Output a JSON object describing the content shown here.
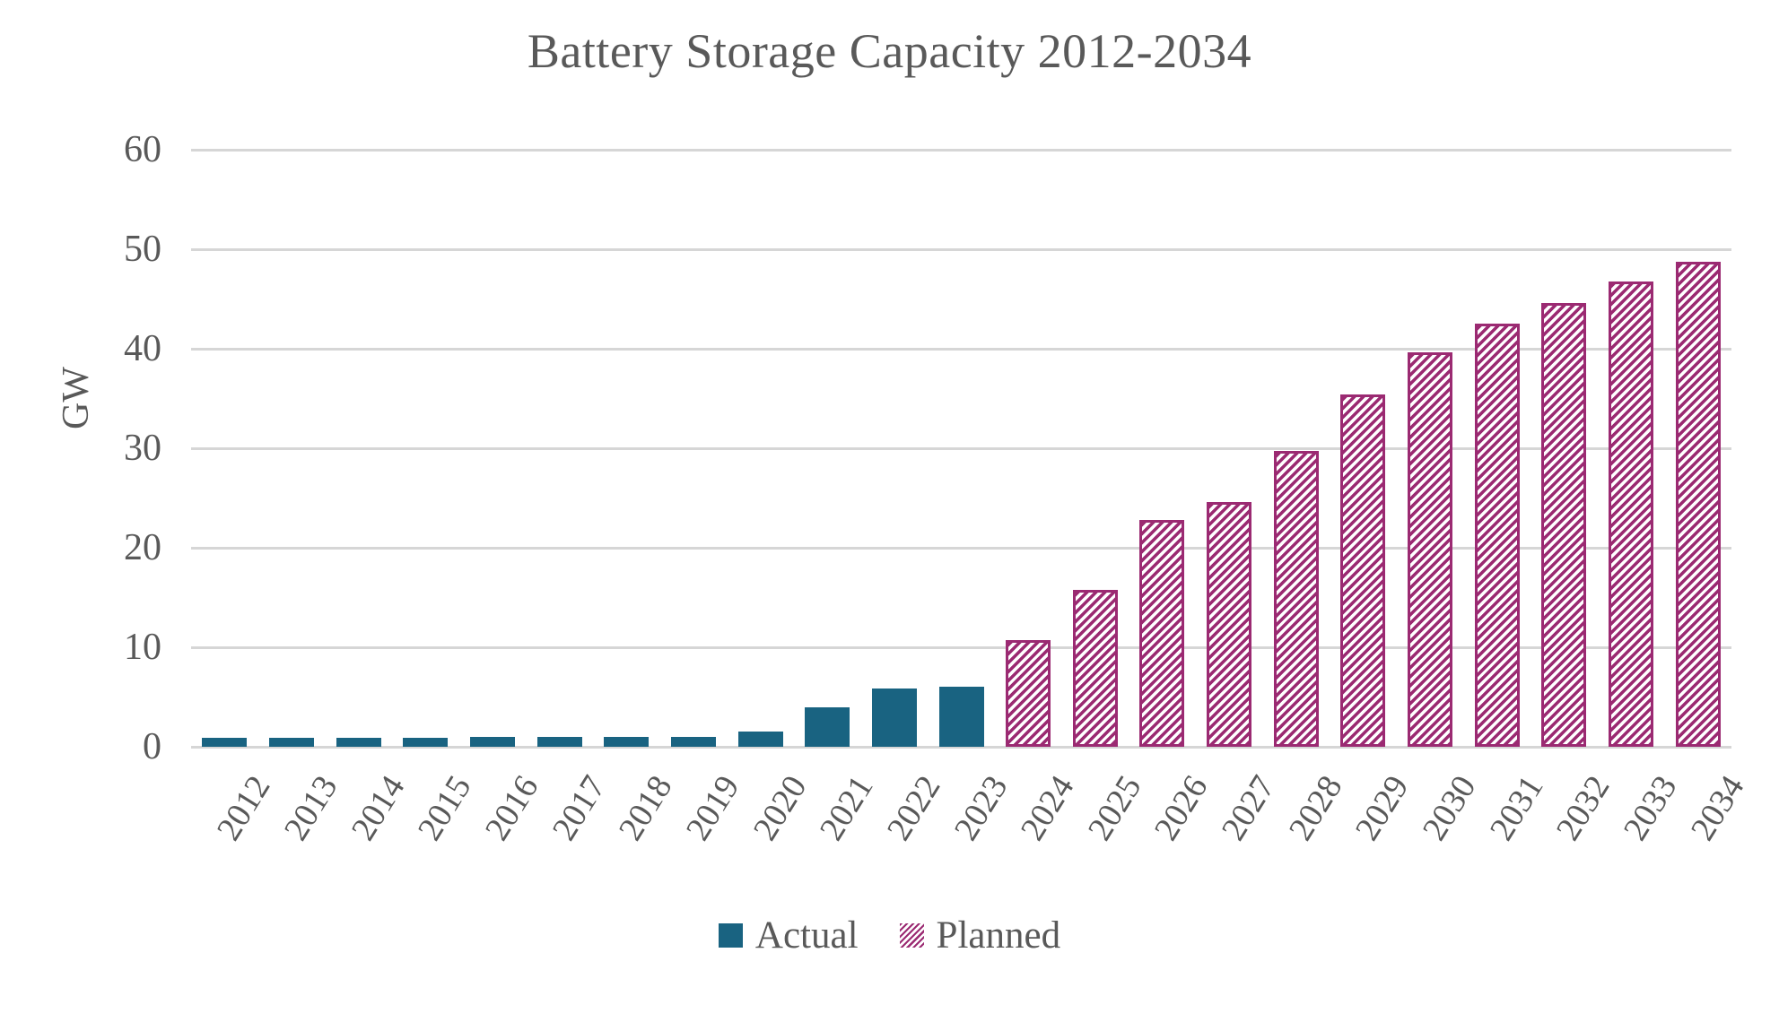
{
  "title": "Battery Storage Capacity 2012-2034",
  "y_axis": {
    "label": "GW",
    "ticks": [
      0,
      10,
      20,
      30,
      40,
      50,
      60
    ]
  },
  "colors": {
    "actual": "#196381",
    "planned": "#9b2a72",
    "gridline": "#d6d6d6",
    "text": "#595959",
    "background": "#ffffff"
  },
  "legend": {
    "position": "bottom",
    "entries": [
      "Actual",
      "Planned"
    ]
  },
  "chart_data": {
    "type": "bar",
    "title": "Battery Storage Capacity 2012-2034",
    "xlabel": "",
    "ylabel": "GW",
    "ylim": [
      0,
      60
    ],
    "grid": true,
    "legend_position": "bottom",
    "categories": [
      "2012",
      "2013",
      "2014",
      "2015",
      "2016",
      "2017",
      "2018",
      "2019",
      "2020",
      "2021",
      "2022",
      "2023",
      "2024",
      "2025",
      "2026",
      "2027",
      "2028",
      "2029",
      "2030",
      "2031",
      "2032",
      "2033",
      "2034"
    ],
    "series": [
      {
        "name": "Actual",
        "style": "solid",
        "values": [
          0.9,
          0.9,
          0.9,
          0.9,
          1.0,
          1.0,
          1.0,
          1.0,
          1.5,
          4.0,
          5.9,
          6.0,
          null,
          null,
          null,
          null,
          null,
          null,
          null,
          null,
          null,
          null,
          null
        ]
      },
      {
        "name": "Planned",
        "style": "hatched",
        "values": [
          null,
          null,
          null,
          null,
          null,
          null,
          null,
          null,
          null,
          null,
          null,
          null,
          10.7,
          15.8,
          22.8,
          24.6,
          29.7,
          35.4,
          39.6,
          42.5,
          44.6,
          46.8,
          48.7
        ]
      }
    ]
  }
}
